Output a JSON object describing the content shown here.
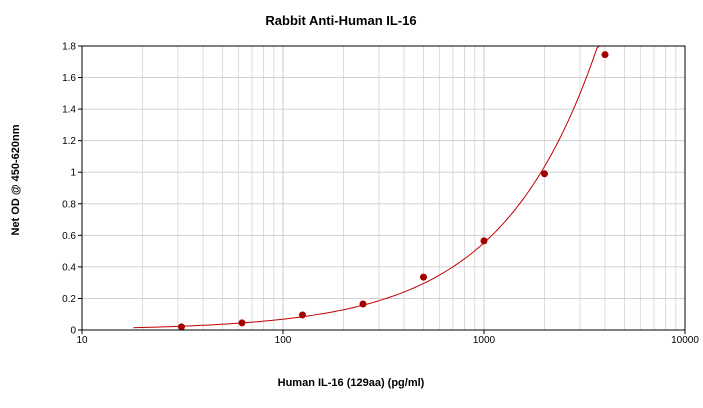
{
  "chart_data": {
    "type": "scatter",
    "title": "Rabbit Anti-Human IL-16",
    "xlabel": "Human IL-16 (129aa) (pg/ml)",
    "ylabel": "Net OD @ 450-620nm",
    "x_scale": "log",
    "xlim": [
      10,
      10000
    ],
    "ylim": [
      0,
      1.8
    ],
    "grid": true,
    "x_ticks": [
      10,
      100,
      1000,
      10000
    ],
    "x_tick_labels": [
      "10",
      "100",
      "1000",
      "10000"
    ],
    "y_ticks": [
      0,
      0.2,
      0.4,
      0.6,
      0.8,
      1,
      1.2,
      1.4,
      1.6,
      1.8
    ],
    "y_tick_labels": [
      "0",
      "0.2",
      "0.4",
      "0.6",
      "0.8",
      "1",
      "1.2",
      "1.4",
      "1.6",
      "1.8"
    ],
    "series": [
      {
        "x": [
          31.25,
          62.5,
          125,
          250,
          500,
          1000,
          2000,
          4000
        ],
        "y": [
          0.02,
          0.045,
          0.095,
          0.165,
          0.335,
          0.565,
          0.99,
          1.745
        ],
        "color": "#a50000",
        "marker": "circle"
      }
    ],
    "fit_curve": {
      "type": "power",
      "x_range": [
        18,
        4300
      ],
      "color": "#c00000"
    }
  }
}
